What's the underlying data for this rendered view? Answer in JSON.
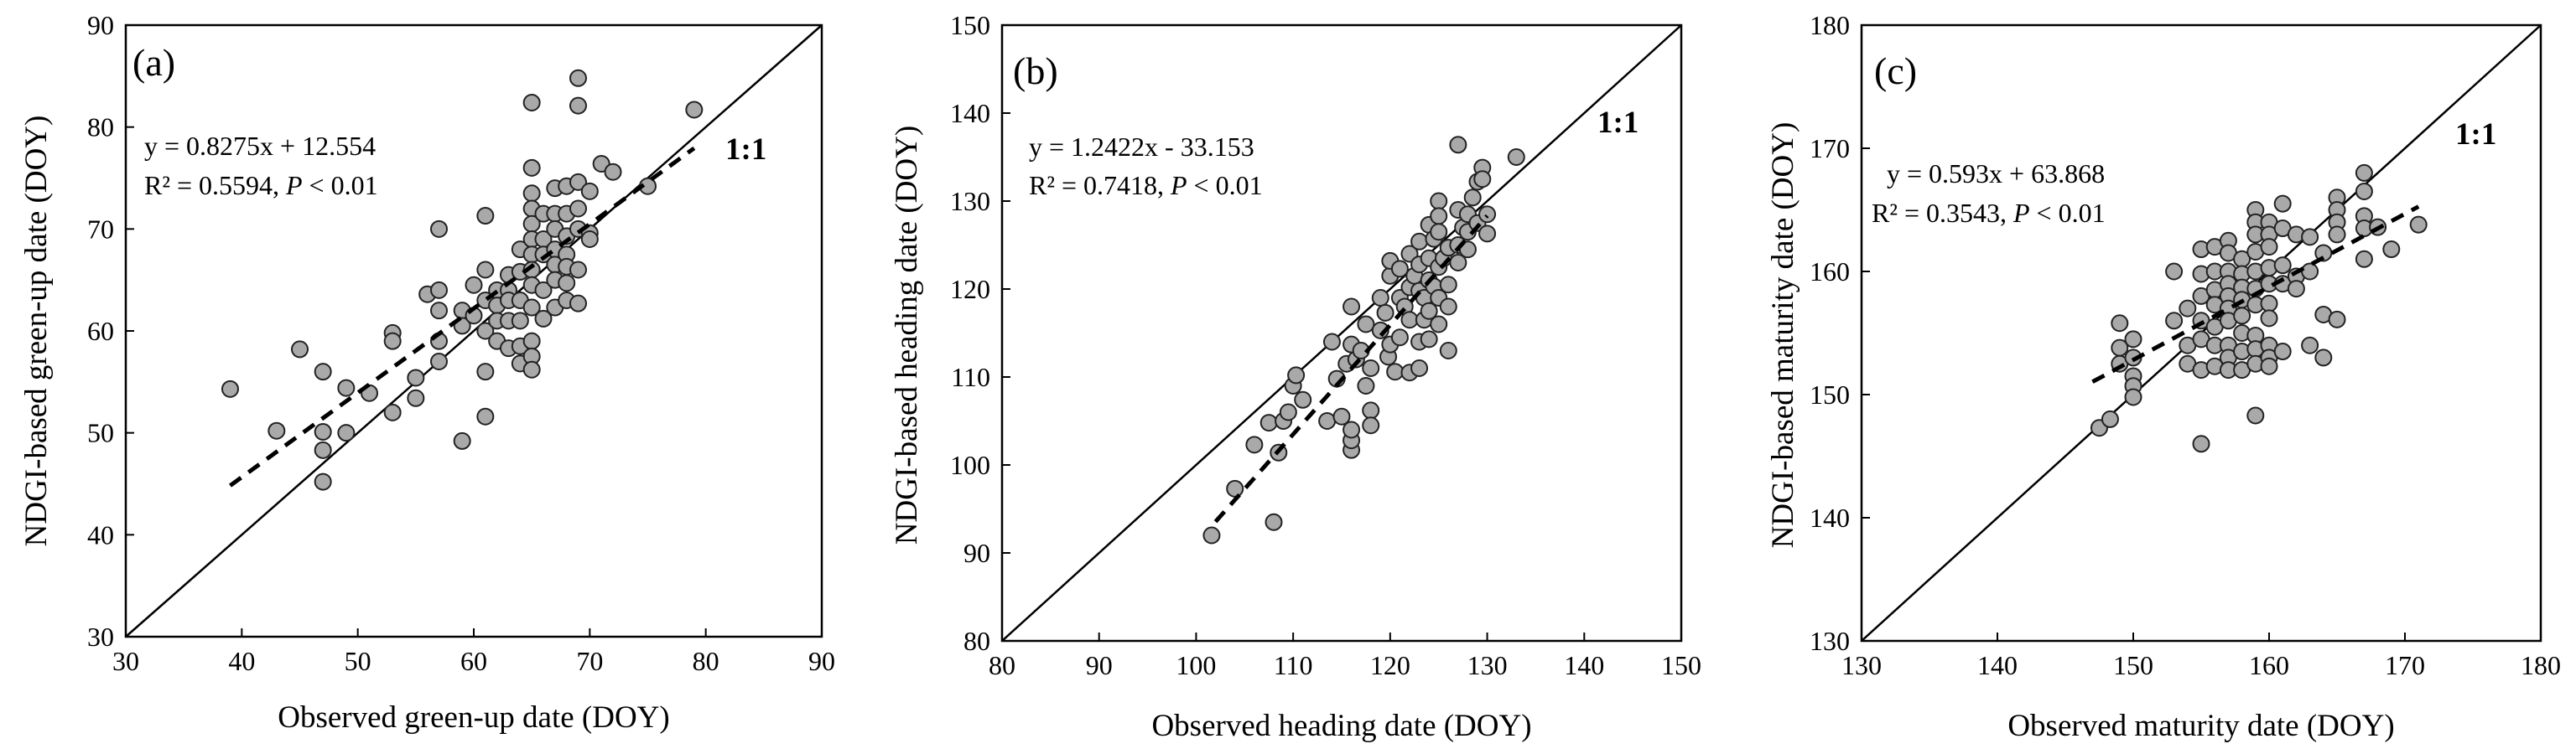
{
  "figure_title": "",
  "colors": {
    "point_fill": "#a9a9a9",
    "point_stroke": "#222222",
    "line": "#000000",
    "background": "#ffffff"
  },
  "chart_data": [
    {
      "type": "scatter",
      "panel_label": "(a)",
      "title": "",
      "xlabel": "Observed green-up date (DOY)",
      "ylabel": "NDGI-based green-up date (DOY)",
      "xlim": [
        30,
        90
      ],
      "ylim": [
        30,
        90
      ],
      "xticks": [
        30,
        40,
        50,
        60,
        70,
        80,
        90
      ],
      "yticks": [
        30,
        40,
        50,
        60,
        70,
        80,
        90
      ],
      "one_to_one_label": "1:1",
      "fit": {
        "equation": "y = 0.8275x + 12.554",
        "r2_prefix": "R² = 0.5594, ",
        "p_italic": "P",
        "p_suffix": " < 0.01",
        "slope": 0.8275,
        "intercept": 12.554,
        "x_range": [
          39,
          79
        ]
      },
      "points": [
        [
          39,
          54.3
        ],
        [
          43,
          50.2
        ],
        [
          45,
          58.2
        ],
        [
          47,
          56
        ],
        [
          47,
          50.1
        ],
        [
          47,
          48.3
        ],
        [
          47,
          45.2
        ],
        [
          49,
          54.4
        ],
        [
          49,
          50
        ],
        [
          51,
          53.9
        ],
        [
          53,
          59.8
        ],
        [
          53,
          59
        ],
        [
          53,
          52
        ],
        [
          55,
          55.4
        ],
        [
          55,
          53.4
        ],
        [
          56,
          63.6
        ],
        [
          57,
          70
        ],
        [
          57,
          64
        ],
        [
          57,
          62
        ],
        [
          57,
          59
        ],
        [
          57,
          57
        ],
        [
          59,
          62
        ],
        [
          59,
          60.5
        ],
        [
          59,
          49.2
        ],
        [
          60,
          64.5
        ],
        [
          60,
          61.5
        ],
        [
          61,
          71.3
        ],
        [
          61,
          66
        ],
        [
          61,
          63
        ],
        [
          61,
          60
        ],
        [
          61,
          56
        ],
        [
          61,
          51.6
        ],
        [
          62,
          64
        ],
        [
          62,
          62.5
        ],
        [
          62,
          61
        ],
        [
          62,
          59
        ],
        [
          63,
          65.5
        ],
        [
          63,
          64
        ],
        [
          63,
          63
        ],
        [
          63,
          61
        ],
        [
          63,
          58.3
        ],
        [
          64,
          68
        ],
        [
          64,
          65.8
        ],
        [
          64,
          63
        ],
        [
          64,
          61
        ],
        [
          64,
          58.5
        ],
        [
          64,
          56.8
        ],
        [
          65,
          82.4
        ],
        [
          65,
          76
        ],
        [
          65,
          73.5
        ],
        [
          65,
          72
        ],
        [
          65,
          70.5
        ],
        [
          65,
          69
        ],
        [
          65,
          67.5
        ],
        [
          65,
          66
        ],
        [
          65,
          64.5
        ],
        [
          65,
          62.3
        ],
        [
          65,
          59
        ],
        [
          65,
          57.5
        ],
        [
          65,
          56.2
        ],
        [
          66,
          71.5
        ],
        [
          66,
          69
        ],
        [
          66,
          67.5
        ],
        [
          66,
          64
        ],
        [
          66,
          61.2
        ],
        [
          67,
          74
        ],
        [
          67,
          71.5
        ],
        [
          67,
          70
        ],
        [
          67,
          68
        ],
        [
          67,
          66.5
        ],
        [
          67,
          65
        ],
        [
          67,
          62.3
        ],
        [
          68,
          74.2
        ],
        [
          68,
          71.5
        ],
        [
          68,
          69.3
        ],
        [
          68,
          67.5
        ],
        [
          68,
          66.3
        ],
        [
          68,
          64.7
        ],
        [
          68,
          63
        ],
        [
          69,
          84.8
        ],
        [
          69,
          82.1
        ],
        [
          69,
          74.6
        ],
        [
          69,
          72
        ],
        [
          69,
          70
        ],
        [
          69,
          66
        ],
        [
          69,
          62.7
        ],
        [
          70,
          73.7
        ],
        [
          70,
          69.6
        ],
        [
          70,
          69
        ],
        [
          71,
          76.4
        ],
        [
          72,
          75.6
        ],
        [
          75,
          74.2
        ],
        [
          79,
          81.7
        ]
      ]
    },
    {
      "type": "scatter",
      "panel_label": "(b)",
      "title": "",
      "xlabel": "Observed heading  date (DOY)",
      "ylabel": "NDGI-based heading date (DOY)",
      "xlim": [
        80,
        150
      ],
      "ylim": [
        80,
        150
      ],
      "xticks": [
        80,
        90,
        100,
        110,
        120,
        130,
        140,
        150
      ],
      "yticks": [
        80,
        90,
        100,
        110,
        120,
        130,
        140,
        150
      ],
      "one_to_one_label": "1:1",
      "fit": {
        "equation": "y = 1.2422x - 33.153",
        "r2_prefix": "R² = 0.7418, ",
        "p_italic": "P",
        "p_suffix": " < 0.01",
        "slope": 1.2422,
        "intercept": -33.153,
        "x_range": [
          102,
          130
        ]
      },
      "points": [
        [
          101.6,
          92
        ],
        [
          104,
          97.3
        ],
        [
          106,
          102.3
        ],
        [
          107.5,
          104.8
        ],
        [
          108,
          93.5
        ],
        [
          108.5,
          101.4
        ],
        [
          109,
          105
        ],
        [
          109.5,
          106
        ],
        [
          110,
          109
        ],
        [
          110.3,
          110.2
        ],
        [
          111,
          107.4
        ],
        [
          113.5,
          105
        ],
        [
          114,
          114
        ],
        [
          114.5,
          109.8
        ],
        [
          115,
          105.5
        ],
        [
          115.5,
          111.5
        ],
        [
          116,
          101.7
        ],
        [
          116,
          102.8
        ],
        [
          116,
          104
        ],
        [
          116,
          113.7
        ],
        [
          116,
          118
        ],
        [
          116.5,
          112
        ],
        [
          117,
          113
        ],
        [
          117.5,
          109
        ],
        [
          117.5,
          116
        ],
        [
          118,
          106.2
        ],
        [
          118,
          111
        ],
        [
          118,
          104.5
        ],
        [
          119,
          115.3
        ],
        [
          119,
          119
        ],
        [
          119.5,
          117.3
        ],
        [
          119.8,
          112.3
        ],
        [
          120,
          121.5
        ],
        [
          120,
          123.2
        ],
        [
          120,
          113.7
        ],
        [
          120.5,
          110.6
        ],
        [
          121,
          119
        ],
        [
          121,
          114.5
        ],
        [
          121,
          122.3
        ],
        [
          121.5,
          118
        ],
        [
          122,
          120.2
        ],
        [
          122,
          124
        ],
        [
          122,
          116.5
        ],
        [
          122,
          110.5
        ],
        [
          122.5,
          121.5
        ],
        [
          123,
          119.8
        ],
        [
          123,
          122.8
        ],
        [
          123,
          125.4
        ],
        [
          123,
          114
        ],
        [
          123,
          111
        ],
        [
          123.5,
          116.5
        ],
        [
          123.5,
          119
        ],
        [
          124,
          121
        ],
        [
          124,
          127.3
        ],
        [
          124,
          123.5
        ],
        [
          124,
          117.5
        ],
        [
          124,
          114.3
        ],
        [
          124.5,
          125.7
        ],
        [
          124.5,
          120.3
        ],
        [
          125,
          130
        ],
        [
          125,
          128.3
        ],
        [
          125,
          126.5
        ],
        [
          125,
          122.5
        ],
        [
          125,
          119
        ],
        [
          125,
          116
        ],
        [
          125.5,
          123.5
        ],
        [
          126,
          120.5
        ],
        [
          126,
          118
        ],
        [
          126,
          113
        ],
        [
          126,
          124.7
        ],
        [
          127,
          136.4
        ],
        [
          127,
          125
        ],
        [
          127,
          123
        ],
        [
          127,
          129
        ],
        [
          127.5,
          127
        ],
        [
          128,
          124.5
        ],
        [
          128,
          126.5
        ],
        [
          128,
          128.5
        ],
        [
          128.5,
          130.4
        ],
        [
          129,
          132.2
        ],
        [
          129,
          127.5
        ],
        [
          129.5,
          133.8
        ],
        [
          129.5,
          132.5
        ],
        [
          130,
          126.3
        ],
        [
          130,
          128.5
        ],
        [
          133,
          135
        ]
      ]
    },
    {
      "type": "scatter",
      "panel_label": "(c)",
      "title": "",
      "xlabel": "Observed maturity  date (DOY)",
      "ylabel": "NDGI-based maturity date (DOY)",
      "xlim": [
        130,
        180
      ],
      "ylim": [
        130,
        180
      ],
      "xticks": [
        130,
        140,
        150,
        160,
        170,
        180
      ],
      "yticks": [
        130,
        140,
        150,
        160,
        170,
        180
      ],
      "one_to_one_label": "1:1",
      "fit": {
        "equation": "y = 0.593x + 63.868",
        "r2_prefix": "R² = 0.3543, ",
        "p_italic": "P",
        "p_suffix": " < 0.01",
        "slope": 0.593,
        "intercept": 63.868,
        "x_range": [
          147,
          171
        ]
      },
      "points": [
        [
          147.5,
          147.3
        ],
        [
          148.3,
          148
        ],
        [
          149,
          155.8
        ],
        [
          149,
          153.8
        ],
        [
          149,
          152.5
        ],
        [
          150,
          154.5
        ],
        [
          150,
          153
        ],
        [
          150,
          151.5
        ],
        [
          150,
          150.7
        ],
        [
          150,
          149.8
        ],
        [
          153,
          160
        ],
        [
          153,
          156
        ],
        [
          154,
          154
        ],
        [
          154,
          152.5
        ],
        [
          154,
          157
        ],
        [
          155,
          161.8
        ],
        [
          155,
          159.8
        ],
        [
          155,
          158
        ],
        [
          155,
          156
        ],
        [
          155,
          154.5
        ],
        [
          155,
          152
        ],
        [
          155,
          146
        ],
        [
          156,
          162
        ],
        [
          156,
          160
        ],
        [
          156,
          158.5
        ],
        [
          156,
          157.3
        ],
        [
          156,
          155.5
        ],
        [
          156,
          154
        ],
        [
          156,
          152.3
        ],
        [
          157,
          162.5
        ],
        [
          157,
          161.5
        ],
        [
          157,
          160
        ],
        [
          157,
          159
        ],
        [
          157,
          158
        ],
        [
          157,
          157
        ],
        [
          157,
          156
        ],
        [
          157,
          154
        ],
        [
          157,
          153
        ],
        [
          157,
          152
        ],
        [
          158,
          161
        ],
        [
          158,
          159.8
        ],
        [
          158,
          158.7
        ],
        [
          158,
          157.7
        ],
        [
          158,
          156.4
        ],
        [
          158,
          155
        ],
        [
          158,
          153.5
        ],
        [
          158,
          152
        ],
        [
          159,
          165
        ],
        [
          159,
          164
        ],
        [
          159,
          163
        ],
        [
          159,
          161.6
        ],
        [
          159,
          160
        ],
        [
          159,
          158.6
        ],
        [
          159,
          157.3
        ],
        [
          159,
          154.8
        ],
        [
          159,
          153.7
        ],
        [
          159,
          152.5
        ],
        [
          159,
          148.3
        ],
        [
          160,
          164
        ],
        [
          160,
          163
        ],
        [
          160,
          162
        ],
        [
          160,
          160.3
        ],
        [
          160,
          159
        ],
        [
          160,
          157.4
        ],
        [
          160,
          156.2
        ],
        [
          160,
          154
        ],
        [
          160,
          153
        ],
        [
          160,
          152.3
        ],
        [
          161,
          165.5
        ],
        [
          161,
          163.5
        ],
        [
          161,
          160.5
        ],
        [
          161,
          159
        ],
        [
          161,
          153.5
        ],
        [
          162,
          163
        ],
        [
          162,
          159.6
        ],
        [
          162,
          158.6
        ],
        [
          163,
          162.8
        ],
        [
          163,
          160
        ],
        [
          163,
          154
        ],
        [
          164,
          161.5
        ],
        [
          164,
          156.5
        ],
        [
          164,
          153
        ],
        [
          165,
          166
        ],
        [
          165,
          165
        ],
        [
          165,
          164
        ],
        [
          165,
          163
        ],
        [
          165,
          156.1
        ],
        [
          167,
          168
        ],
        [
          167,
          166.5
        ],
        [
          167,
          164.5
        ],
        [
          167,
          163.5
        ],
        [
          167,
          161
        ],
        [
          168,
          163.6
        ],
        [
          169,
          161.8
        ],
        [
          171,
          163.8
        ]
      ]
    }
  ]
}
